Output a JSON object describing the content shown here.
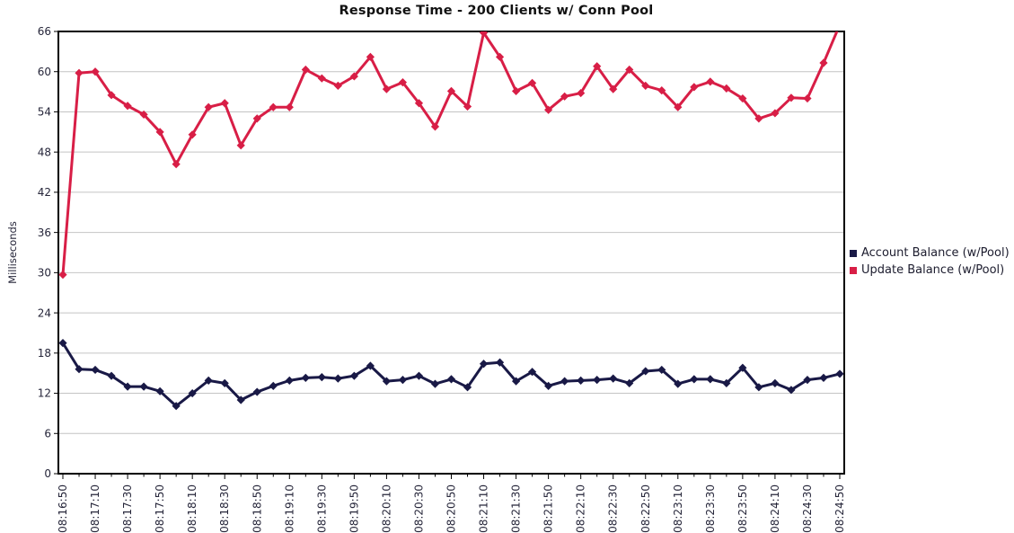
{
  "page": {
    "background": "#ffffff"
  },
  "chart_data": {
    "type": "line",
    "title": "Response Time - 200 Clients w/ Conn Pool",
    "ylabel": "Milliseconds",
    "xlabel": "",
    "ylim": [
      0,
      66
    ],
    "ytick_step": 6,
    "grid": "horizontal",
    "legend_position": "right",
    "x_label_every": 2,
    "x": [
      "08:16:50",
      "08:17:00",
      "08:17:10",
      "08:17:20",
      "08:17:30",
      "08:17:40",
      "08:17:50",
      "08:18:00",
      "08:18:10",
      "08:18:20",
      "08:18:30",
      "08:18:40",
      "08:18:50",
      "08:19:00",
      "08:19:10",
      "08:19:20",
      "08:19:30",
      "08:19:40",
      "08:19:50",
      "08:20:00",
      "08:20:10",
      "08:20:20",
      "08:20:30",
      "08:20:40",
      "08:20:50",
      "08:21:00",
      "08:21:10",
      "08:21:20",
      "08:21:30",
      "08:21:40",
      "08:21:50",
      "08:22:00",
      "08:22:10",
      "08:22:20",
      "08:22:30",
      "08:22:40",
      "08:22:50",
      "08:23:00",
      "08:23:10",
      "08:23:20",
      "08:23:30",
      "08:23:40",
      "08:23:50",
      "08:24:00",
      "08:24:10",
      "08:24:20",
      "08:24:30",
      "08:24:40",
      "08:24:50"
    ],
    "series": [
      {
        "name": "Account Balance (w/Pool)",
        "color": "#191946",
        "marker": "diamond",
        "values": [
          19.5,
          15.6,
          15.5,
          14.6,
          13.0,
          13.0,
          12.3,
          10.1,
          12.0,
          13.9,
          13.5,
          11.0,
          12.2,
          13.1,
          13.9,
          14.3,
          14.4,
          14.2,
          14.6,
          16.1,
          13.8,
          14.0,
          14.6,
          13.4,
          14.1,
          12.9,
          16.4,
          16.6,
          13.8,
          15.2,
          13.1,
          13.8,
          13.9,
          14.0,
          14.2,
          13.5,
          15.3,
          15.5,
          13.4,
          14.1,
          14.1,
          13.5,
          15.8,
          12.9,
          13.5,
          12.5,
          14.0,
          14.3,
          14.9
        ]
      },
      {
        "name": "Update Balance (w/Pool)",
        "color": "#d81e46",
        "marker": "diamond",
        "values": [
          29.7,
          59.8,
          60.0,
          56.5,
          54.9,
          53.6,
          51.0,
          46.2,
          50.6,
          54.7,
          55.3,
          49.0,
          53.0,
          54.7,
          54.7,
          60.3,
          59.0,
          57.9,
          59.3,
          62.2,
          57.4,
          58.4,
          55.3,
          51.8,
          57.1,
          54.8,
          65.8,
          62.2,
          57.1,
          58.3,
          54.3,
          56.3,
          56.8,
          60.8,
          57.4,
          60.3,
          57.9,
          57.2,
          54.7,
          57.7,
          58.5,
          57.5,
          56.0,
          53.0,
          53.8,
          56.1,
          56.0,
          61.3,
          67.0
        ]
      }
    ],
    "colors": {
      "axis": "#000000",
      "grid": "#c4c4c4",
      "tick_text": "#26263a",
      "title_text": "#111111",
      "legend_text": "#1c1c2e"
    }
  }
}
